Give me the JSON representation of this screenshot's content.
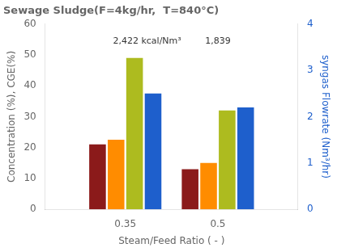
{
  "chart_data": {
    "type": "bar",
    "title": "Sewage Sludge(F=4kg/hr,  T=840°C)",
    "xlabel": "Steam/Feed Ratio ( - )",
    "ylabel": "Concentration (%), CGE(%)",
    "y2label": "syngas Flowrate (Nm³/hr)",
    "x": [
      0.35,
      0.5
    ],
    "xlim": [
      0.22,
      0.63
    ],
    "xticks": [
      0.35,
      0.5
    ],
    "ylim": [
      0,
      60
    ],
    "yticks": [
      0,
      10,
      20,
      30,
      40,
      50,
      60
    ],
    "y2lim": [
      0,
      4
    ],
    "y2ticks": [
      0,
      1,
      2,
      3,
      4
    ],
    "series": [
      {
        "color": "#8B1A1A",
        "values": [
          21.0,
          13.0
        ]
      },
      {
        "color": "#FF8C00",
        "values": [
          22.5,
          15.0
        ]
      },
      {
        "color": "#ADBB1F",
        "values": [
          49.0,
          32.0
        ]
      },
      {
        "color": "#1E5FCC",
        "values": [
          2.5,
          2.2
        ],
        "axis": "y2"
      }
    ],
    "annotations": [
      {
        "text": "2,422 kcal/Nm³",
        "x": 0.33,
        "y": 53,
        "align": "left"
      },
      {
        "text": "1,839",
        "x": 0.5,
        "y": 53,
        "align": "center"
      }
    ],
    "grid": false
  }
}
